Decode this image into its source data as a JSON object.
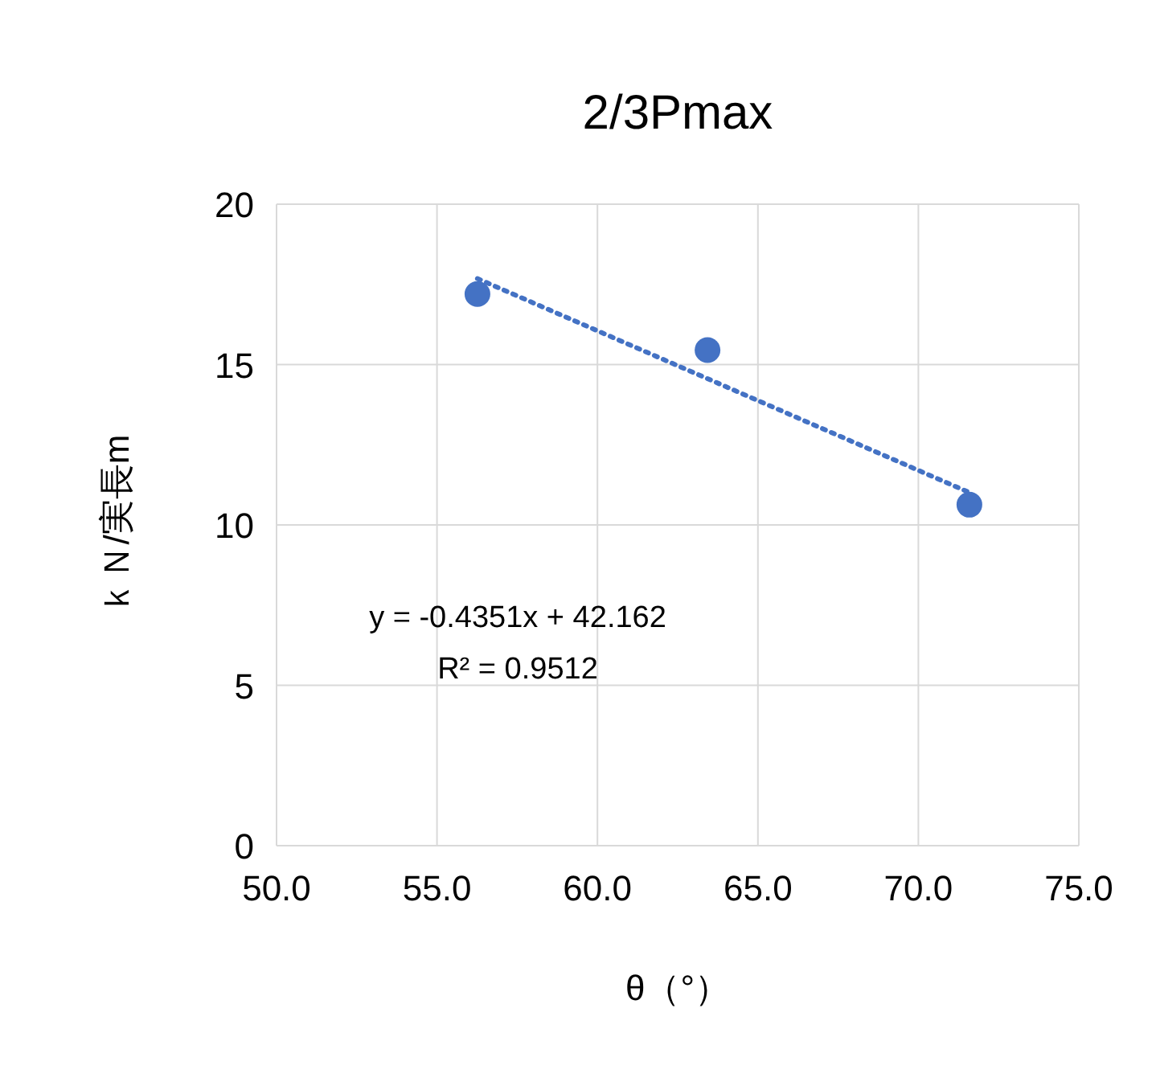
{
  "chart_data": {
    "type": "scatter",
    "title": "2/3Pmax",
    "xlabel": "θ（°）",
    "ylabel": "ｋＮ/実長m",
    "series": [
      {
        "color": "#4472c4",
        "marker": "circle",
        "x": [
          56.26,
          63.43,
          71.59
        ],
        "values": [
          17.2,
          15.45,
          10.63
        ]
      },
      {
        "type": "line",
        "color": "#4472c4",
        "line_style": "dotted",
        "marker": "none",
        "x": [
          56.26,
          71.59
        ],
        "values": [
          17.68,
          11.01
        ]
      }
    ],
    "annotations": [
      "y = -0.4351x + 42.162",
      "R² = 0.9512"
    ],
    "xlim": [
      50,
      75
    ],
    "ylim": [
      0,
      20
    ],
    "xticks": [
      {
        "value": 50,
        "label": "50.0"
      },
      {
        "value": 55,
        "label": "55.0"
      },
      {
        "value": 60,
        "label": "60.0"
      },
      {
        "value": 65,
        "label": "65.0"
      },
      {
        "value": 70,
        "label": "70.0"
      },
      {
        "value": 75,
        "label": "75.0"
      }
    ],
    "yticks": [
      0,
      5,
      10,
      15,
      20
    ],
    "grid": true
  }
}
